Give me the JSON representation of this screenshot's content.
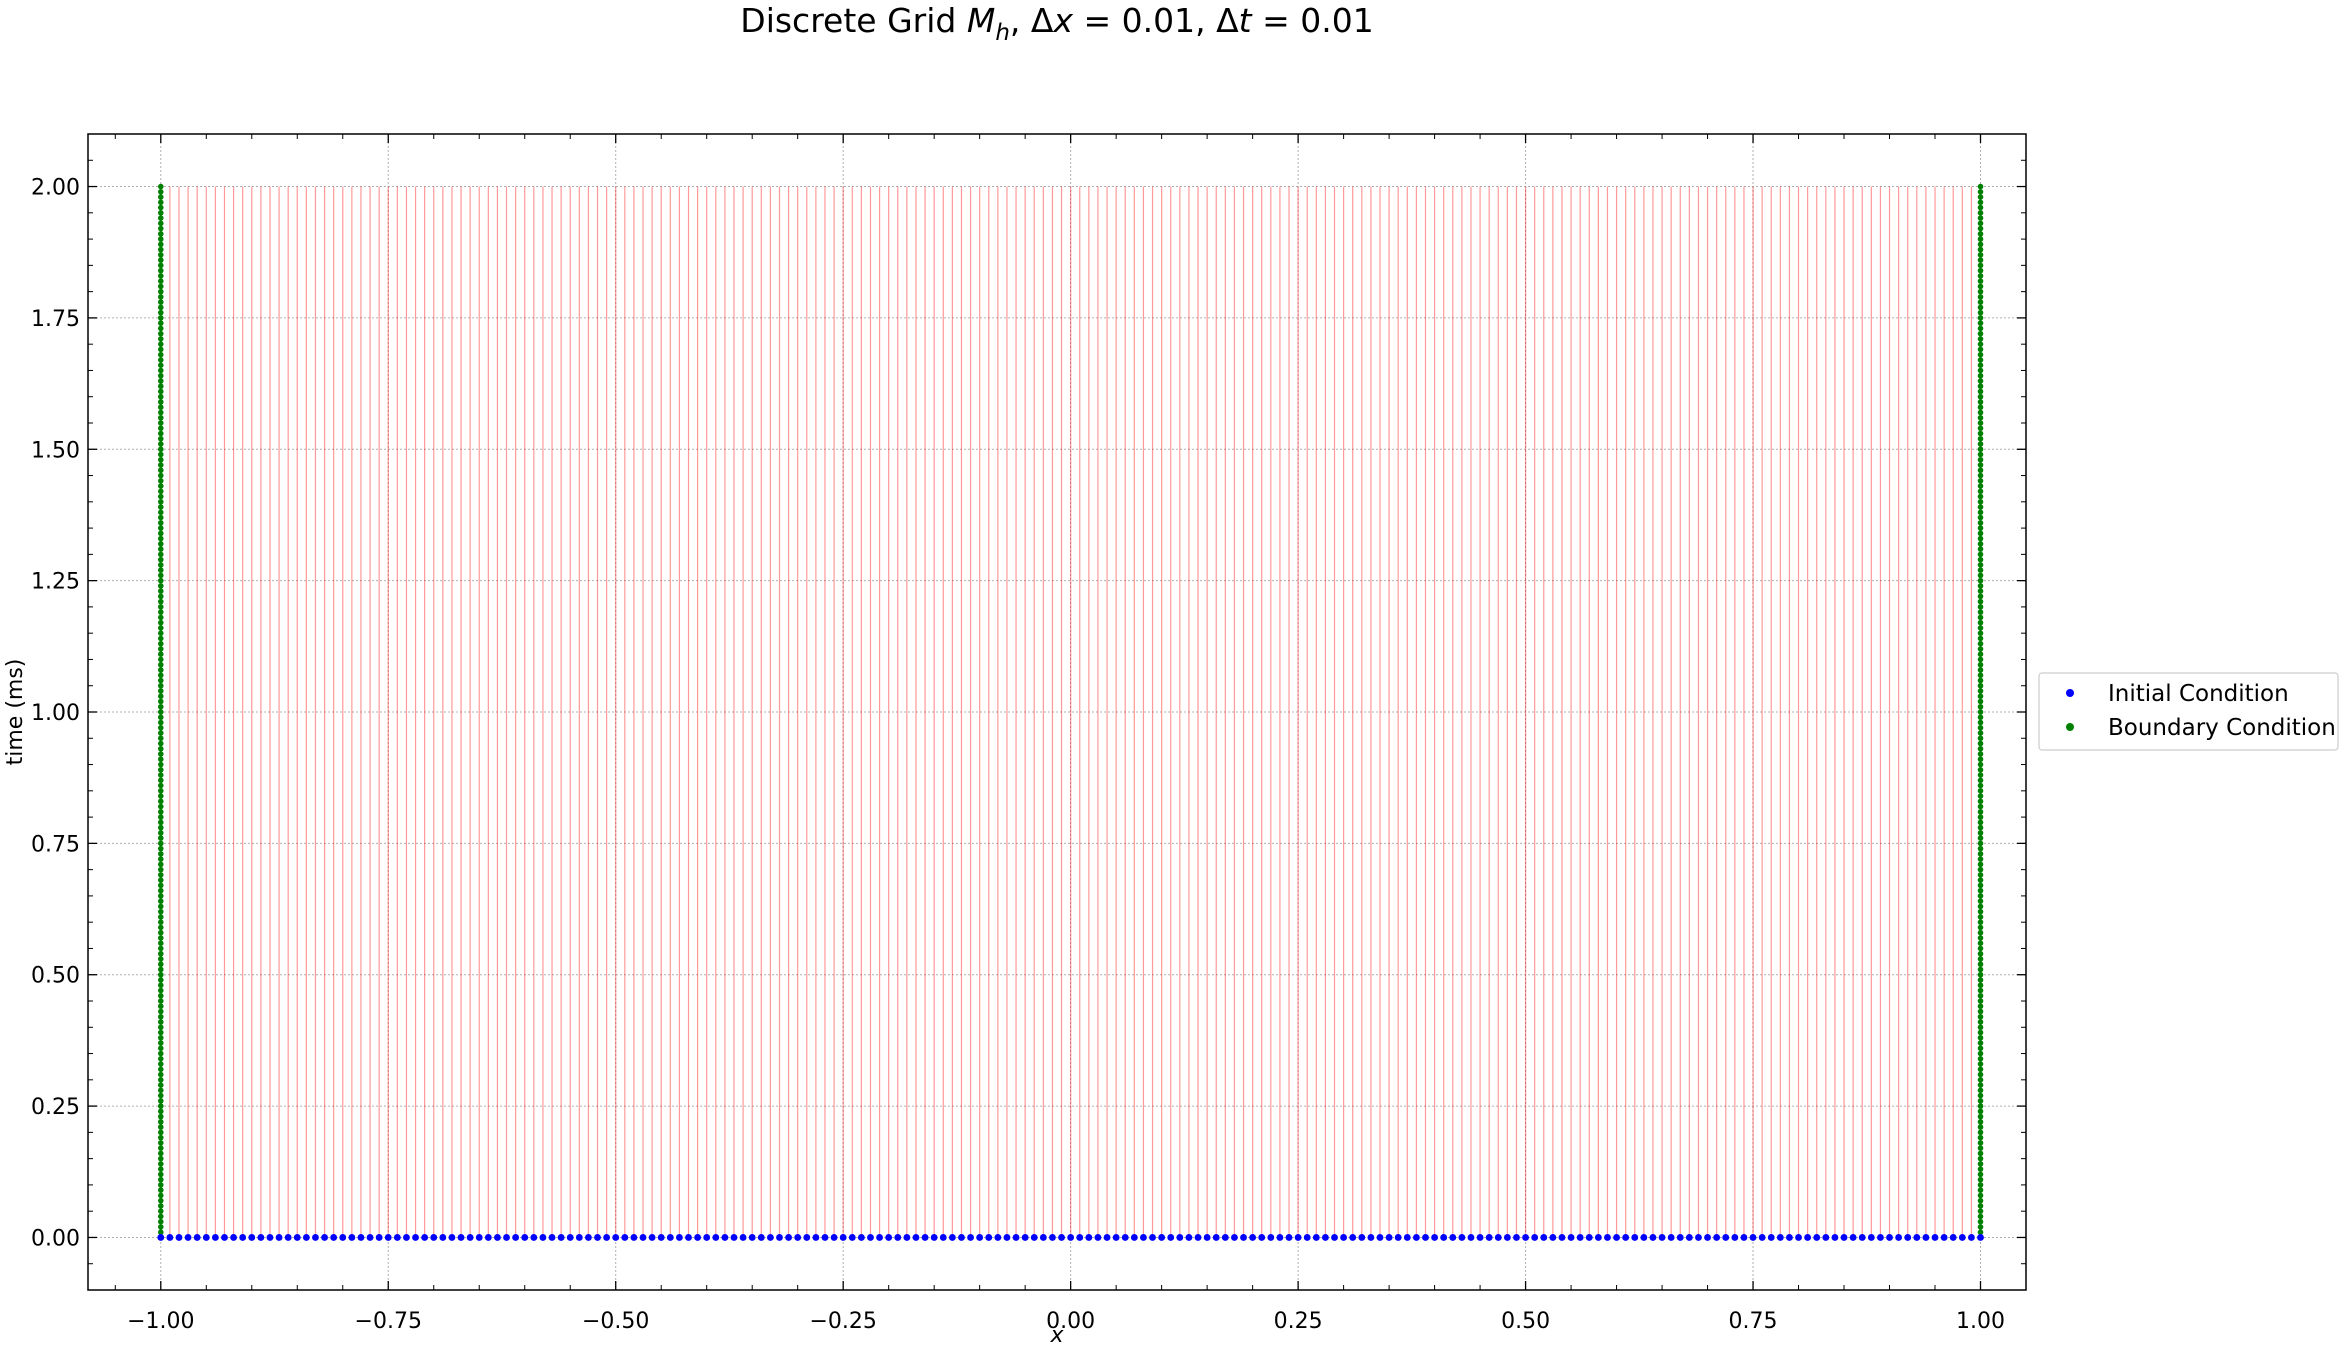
{
  "chart_data": {
    "type": "scatter",
    "title": {
      "prefix": "Discrete Grid ",
      "M": "M",
      "h": "h",
      "sep1": ",  Δ",
      "x": "x",
      "eq1": " = 0.01",
      "sep2": ",  Δ",
      "t": "t",
      "eq2": " = 0.01"
    },
    "xlabel": "x",
    "ylabel": "time (ms)",
    "xlim": [
      -1.08,
      1.05
    ],
    "ylim": [
      -0.1,
      2.1
    ],
    "xticks": [
      "−1.00",
      "−0.75",
      "−0.50",
      "−0.25",
      "0.00",
      "0.25",
      "0.50",
      "0.75",
      "1.00"
    ],
    "xtick_values": [
      -1.0,
      -0.75,
      -0.5,
      -0.25,
      0.0,
      0.25,
      0.5,
      0.75,
      1.0
    ],
    "yticks": [
      "0.00",
      "0.25",
      "0.50",
      "0.75",
      "1.00",
      "1.25",
      "1.50",
      "1.75",
      "2.00"
    ],
    "ytick_values": [
      0.0,
      0.25,
      0.5,
      0.75,
      1.0,
      1.25,
      1.5,
      1.75,
      2.0
    ],
    "grid": true,
    "grid_lines": {
      "description": "vertical lines at every interior x node from t=0 to t=2",
      "x_start": -0.99,
      "x_end": 0.99,
      "dx": 0.01,
      "t_min": 0.0,
      "t_max": 2.0,
      "color": "#ff0000"
    },
    "series": [
      {
        "name": "Initial Condition",
        "color": "#0000ff",
        "x_start": -1.0,
        "x_end": 1.0,
        "dx": 0.01,
        "t": 0.0
      },
      {
        "name": "Boundary Condition",
        "color": "#008000",
        "x": [
          -1.0,
          1.0
        ],
        "t_start": 0.0,
        "t_end": 2.0,
        "dt": 0.01
      }
    ],
    "legend_placement": "center-right outside"
  }
}
